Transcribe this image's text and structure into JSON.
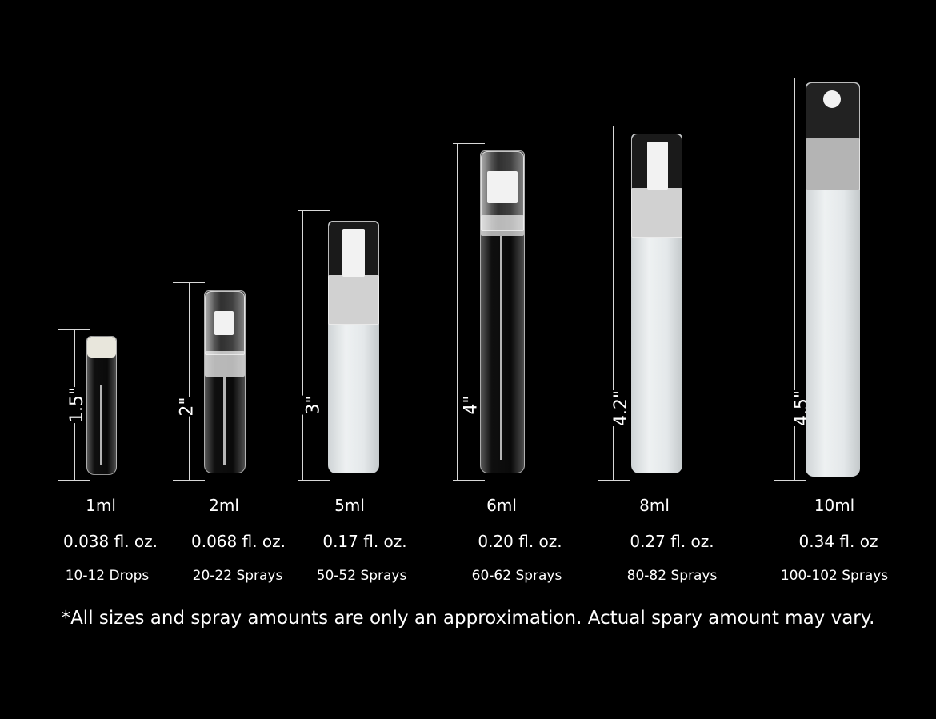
{
  "sizes": [
    {
      "height": "1.5\"",
      "volume": "1ml",
      "fl_oz": "0.038 fl. oz.",
      "count": "10-12 Drops"
    },
    {
      "height": "2\"",
      "volume": "2ml",
      "fl_oz": "0.068 fl. oz.",
      "count": "20-22 Sprays"
    },
    {
      "height": "3\"",
      "volume": "5ml",
      "fl_oz": "0.17 fl. oz.",
      "count": "50-52 Sprays"
    },
    {
      "height": "4\"",
      "volume": "6ml",
      "fl_oz": "0.20 fl. oz.",
      "count": "60-62 Sprays"
    },
    {
      "height": "4.2\"",
      "volume": "8ml",
      "fl_oz": "0.27 fl. oz.",
      "count": "80-82 Sprays"
    },
    {
      "height": "4.5\"",
      "volume": "10ml",
      "fl_oz": "0.34 fl. oz",
      "count": "100-102 Sprays"
    }
  ],
  "footnote": "*All sizes and spray amounts are only an approximation. Actual spary amount may vary.",
  "colors": {
    "background": "#000000",
    "text": "#ffffff"
  }
}
